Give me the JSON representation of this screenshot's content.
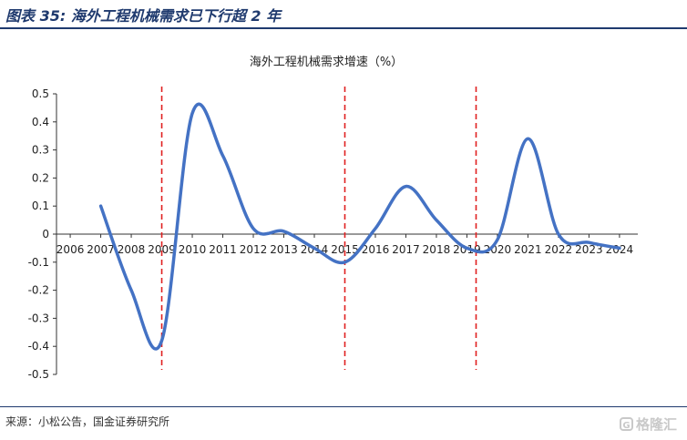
{
  "figure": {
    "label": "图表 35:",
    "title": "海外工程机械需求已下行超 2 年",
    "source": "来源：小松公告，国金证券研究所",
    "watermark": "格隆汇",
    "watermark_icon": "G"
  },
  "chart_data": {
    "type": "line",
    "title": "海外工程机械需求增速（%）",
    "xlabel": "",
    "ylabel": "",
    "categories": [
      "2006",
      "2007",
      "2008",
      "2009",
      "2010",
      "2011",
      "2012",
      "2013",
      "2014",
      "2015",
      "2016",
      "2017",
      "2018",
      "2019",
      "2020",
      "2021",
      "2022",
      "2023",
      "2024"
    ],
    "series": [
      {
        "color": "#4472c4",
        "points": [
          {
            "x": 2007,
            "y": 0.1
          },
          {
            "x": 2008,
            "y": -0.2
          },
          {
            "x": 2009,
            "y": -0.38
          },
          {
            "x": 2010,
            "y": 0.43
          },
          {
            "x": 2011,
            "y": 0.28
          },
          {
            "x": 2012,
            "y": 0.02
          },
          {
            "x": 2013,
            "y": 0.01
          },
          {
            "x": 2014,
            "y": -0.05
          },
          {
            "x": 2015,
            "y": -0.1
          },
          {
            "x": 2016,
            "y": 0.02
          },
          {
            "x": 2017,
            "y": 0.17
          },
          {
            "x": 2018,
            "y": 0.05
          },
          {
            "x": 2019,
            "y": -0.05
          },
          {
            "x": 2020,
            "y": -0.02
          },
          {
            "x": 2021,
            "y": 0.34
          },
          {
            "x": 2022,
            "y": 0.0
          },
          {
            "x": 2023,
            "y": -0.03
          },
          {
            "x": 2024,
            "y": -0.05
          }
        ]
      }
    ],
    "vlines": [
      {
        "x": 2009.0,
        "color": "#e02020",
        "style": "dashed"
      },
      {
        "x": 2015.0,
        "color": "#e02020",
        "style": "dashed"
      },
      {
        "x": 2019.3,
        "color": "#e02020",
        "style": "dashed"
      }
    ],
    "ylim": [
      -0.5,
      0.5
    ],
    "yticks": [
      "0.5",
      "0.4",
      "0.3",
      "0.2",
      "0.1",
      "0",
      "-0.1",
      "-0.2",
      "-0.3",
      "-0.4",
      "-0.5"
    ],
    "yticks_values": [
      0.5,
      0.4,
      0.3,
      0.2,
      0.1,
      0,
      -0.1,
      -0.2,
      -0.3,
      -0.4,
      -0.5
    ],
    "grid": false,
    "legend": "none"
  }
}
